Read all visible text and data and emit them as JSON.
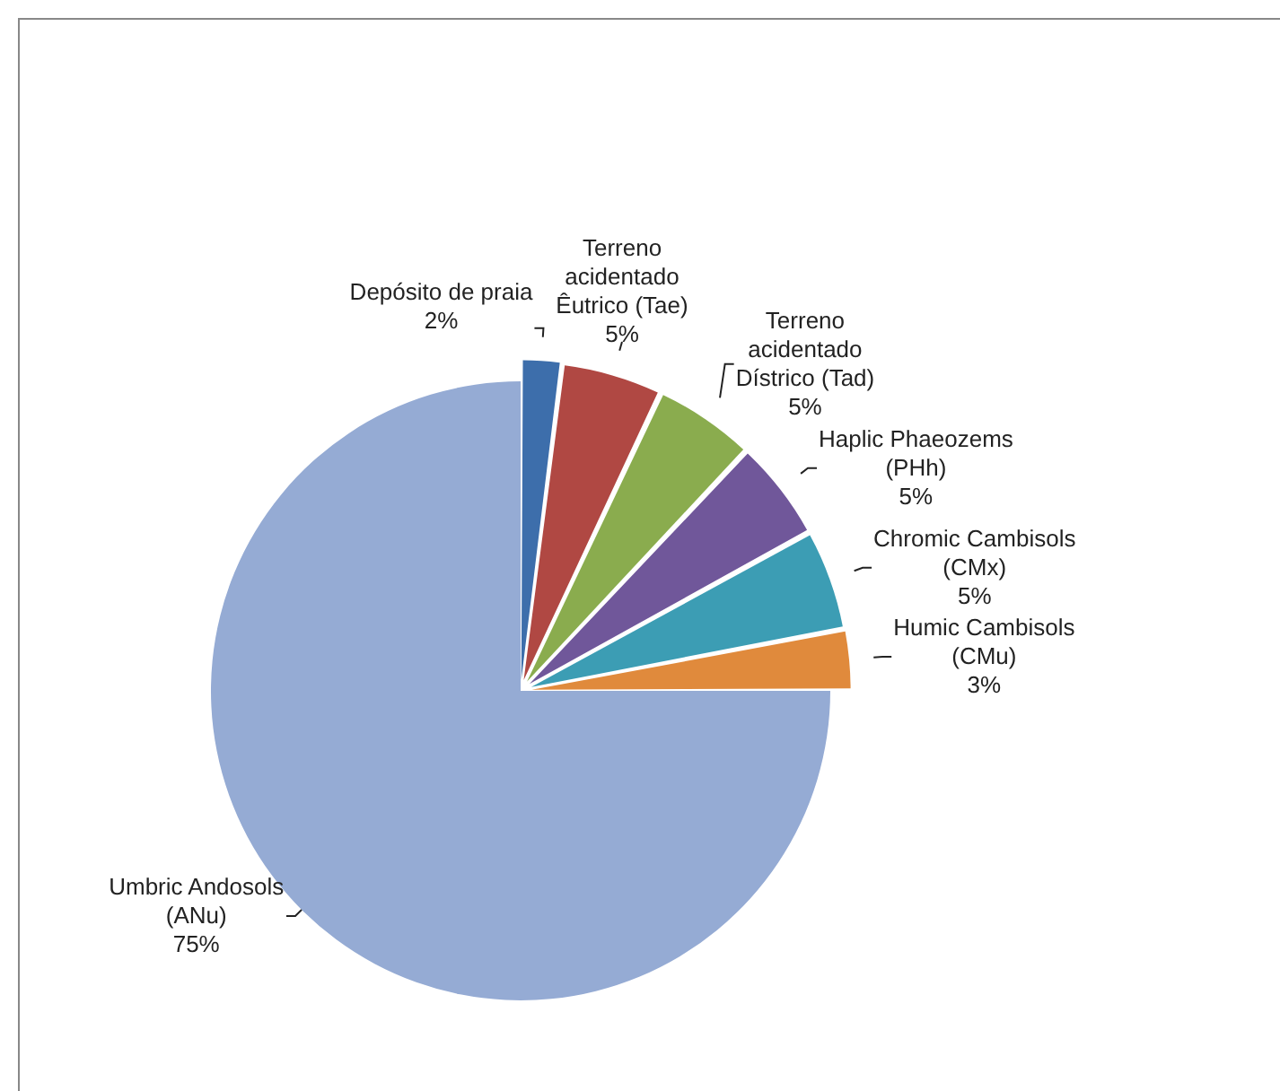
{
  "chart_data": {
    "type": "pie",
    "categories": [
      "Depósito de praia",
      "Terreno acidentado Êutrico (Tae)",
      "Terreno acidentado Dístrico (Tad)",
      "Haplic Phaeozems (PHh)",
      "Chromic Cambisols (CMx)",
      "Humic Cambisols (CMu)",
      "Umbric Andosols (ANu)"
    ],
    "values": [
      2,
      5,
      5,
      5,
      5,
      3,
      75
    ],
    "value_labels": [
      "2%",
      "5%",
      "5%",
      "5%",
      "5%",
      "3%",
      "75%"
    ],
    "colors": [
      "#3d6eab",
      "#b04843",
      "#8aac4e",
      "#70579a",
      "#3c9db4",
      "#e08a3c",
      "#95abd4"
    ],
    "legend": false
  }
}
